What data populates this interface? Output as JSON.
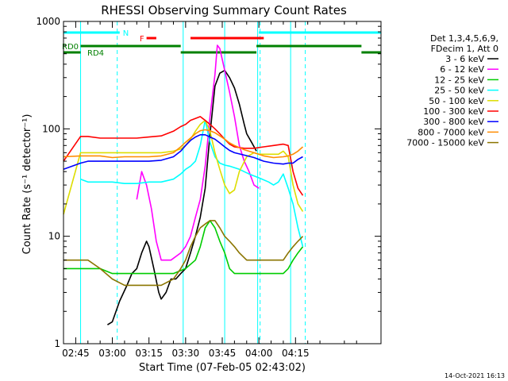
{
  "chart_data": {
    "type": "line",
    "title": "RHESSI Observing Summary Count Rates",
    "xlabel": "Start Time (07-Feb-05 02:43:02)",
    "ylabel": "Count Rate (s⁻¹ detector⁻¹)",
    "y_scale": "log",
    "ylim": [
      1,
      1000
    ],
    "y_ticks": [
      {
        "value": 1,
        "label": "1"
      },
      {
        "value": 10,
        "label": "10"
      },
      {
        "value": 100,
        "label": "100"
      },
      {
        "value": 1000,
        "label": "1000"
      }
    ],
    "xlim_minutes": [
      -20,
      110
    ],
    "x_ticks": [
      {
        "value": -15,
        "label": "02:45"
      },
      {
        "value": 0,
        "label": "03:00"
      },
      {
        "value": 15,
        "label": "03:15"
      },
      {
        "value": 30,
        "label": "03:30"
      },
      {
        "value": 45,
        "label": "03:45"
      },
      {
        "value": 60,
        "label": "04:00"
      },
      {
        "value": 75,
        "label": "04:15"
      }
    ],
    "x_reference": "03:00",
    "timestamp": "14-Oct-2021 16:13",
    "legend_header": [
      "Det 1,3,4,5,6,9,",
      "FDecim 1, Att 0"
    ],
    "legend_position": "right",
    "series": [
      {
        "name": "3 - 6 keV",
        "color": "#000000",
        "points": [
          [
            -2,
            1.5
          ],
          [
            0,
            1.6
          ],
          [
            3,
            2.5
          ],
          [
            6,
            3.5
          ],
          [
            8,
            4.5
          ],
          [
            10,
            5
          ],
          [
            12,
            7
          ],
          [
            14,
            9
          ],
          [
            15,
            8
          ],
          [
            17,
            5
          ],
          [
            19,
            3
          ],
          [
            20,
            2.6
          ],
          [
            22,
            3
          ],
          [
            24,
            4
          ],
          [
            26,
            4
          ],
          [
            28,
            4.5
          ],
          [
            30,
            5
          ],
          [
            32,
            7
          ],
          [
            34,
            10
          ],
          [
            36,
            15
          ],
          [
            38,
            28
          ],
          [
            40,
            90
          ],
          [
            42,
            250
          ],
          [
            44,
            330
          ],
          [
            46,
            350
          ],
          [
            48,
            300
          ],
          [
            50,
            240
          ],
          [
            52,
            170
          ],
          [
            54,
            110
          ],
          [
            55,
            90
          ],
          [
            57,
            75
          ],
          [
            59,
            62
          ]
        ]
      },
      {
        "name": "6 - 12 keV",
        "color": "#ff00ff",
        "points": [
          [
            10,
            22
          ],
          [
            12,
            40
          ],
          [
            14,
            30
          ],
          [
            16,
            18
          ],
          [
            18,
            9
          ],
          [
            20,
            6
          ],
          [
            24,
            6
          ],
          [
            28,
            7
          ],
          [
            30,
            8
          ],
          [
            32,
            10
          ],
          [
            34,
            15
          ],
          [
            36,
            22
          ],
          [
            38,
            45
          ],
          [
            40,
            130
          ],
          [
            42,
            320
          ],
          [
            43,
            600
          ],
          [
            44,
            560
          ],
          [
            46,
            350
          ],
          [
            48,
            220
          ],
          [
            50,
            130
          ],
          [
            52,
            70
          ],
          [
            54,
            50
          ],
          [
            56,
            40
          ],
          [
            58,
            30
          ],
          [
            60,
            28
          ]
        ]
      },
      {
        "name": "12 - 25 keV",
        "color": "#00cc00",
        "points": [
          [
            -20,
            5
          ],
          [
            -13,
            5
          ],
          [
            -10,
            5
          ],
          [
            -5,
            5
          ],
          [
            0,
            4.5
          ],
          [
            5,
            4.5
          ],
          [
            10,
            4.5
          ],
          [
            15,
            4.5
          ],
          [
            20,
            4.5
          ],
          [
            25,
            4.5
          ],
          [
            30,
            5
          ],
          [
            34,
            6
          ],
          [
            36,
            8
          ],
          [
            38,
            12
          ],
          [
            40,
            14
          ],
          [
            42,
            12
          ],
          [
            44,
            9
          ],
          [
            46,
            7
          ],
          [
            48,
            5
          ],
          [
            50,
            4.5
          ],
          [
            55,
            4.5
          ],
          [
            60,
            4.5
          ],
          [
            65,
            4.5
          ],
          [
            70,
            4.5
          ],
          [
            72,
            5
          ],
          [
            74,
            6
          ],
          [
            76,
            7
          ],
          [
            78,
            8
          ]
        ]
      },
      {
        "name": "25 - 50 keV",
        "color": "#00ffff",
        "points": [
          [
            -13,
            34
          ],
          [
            -10,
            32
          ],
          [
            -5,
            32
          ],
          [
            0,
            32
          ],
          [
            5,
            31
          ],
          [
            10,
            31
          ],
          [
            15,
            32
          ],
          [
            20,
            32
          ],
          [
            25,
            34
          ],
          [
            28,
            38
          ],
          [
            30,
            42
          ],
          [
            32,
            45
          ],
          [
            34,
            50
          ],
          [
            36,
            70
          ],
          [
            38,
            120
          ],
          [
            40,
            75
          ],
          [
            42,
            55
          ],
          [
            44,
            48
          ],
          [
            46,
            46
          ],
          [
            48,
            45
          ],
          [
            52,
            42
          ],
          [
            56,
            38
          ],
          [
            60,
            35
          ],
          [
            64,
            32
          ],
          [
            66,
            30
          ],
          [
            68,
            32
          ],
          [
            70,
            38
          ],
          [
            72,
            28
          ],
          [
            74,
            20
          ],
          [
            76,
            12
          ],
          [
            78,
            8
          ]
        ]
      },
      {
        "name": "50 - 100 keV",
        "color": "#dddd00",
        "points": [
          [
            -20,
            16
          ],
          [
            -13,
            60
          ],
          [
            -10,
            60
          ],
          [
            -5,
            60
          ],
          [
            0,
            60
          ],
          [
            5,
            60
          ],
          [
            10,
            60
          ],
          [
            15,
            60
          ],
          [
            20,
            60
          ],
          [
            25,
            62
          ],
          [
            28,
            65
          ],
          [
            30,
            70
          ],
          [
            32,
            80
          ],
          [
            34,
            95
          ],
          [
            36,
            110
          ],
          [
            38,
            120
          ],
          [
            40,
            95
          ],
          [
            42,
            60
          ],
          [
            44,
            42
          ],
          [
            46,
            30
          ],
          [
            48,
            25
          ],
          [
            50,
            27
          ],
          [
            52,
            40
          ],
          [
            55,
            55
          ],
          [
            58,
            60
          ],
          [
            60,
            58
          ],
          [
            64,
            58
          ],
          [
            68,
            58
          ],
          [
            70,
            62
          ],
          [
            72,
            55
          ],
          [
            74,
            30
          ],
          [
            76,
            20
          ],
          [
            78,
            17
          ]
        ]
      },
      {
        "name": "100 - 300 keV",
        "color": "#ff0000",
        "points": [
          [
            -20,
            50
          ],
          [
            -13,
            85
          ],
          [
            -10,
            85
          ],
          [
            -5,
            82
          ],
          [
            0,
            82
          ],
          [
            5,
            82
          ],
          [
            10,
            82
          ],
          [
            15,
            84
          ],
          [
            20,
            86
          ],
          [
            25,
            95
          ],
          [
            28,
            105
          ],
          [
            30,
            110
          ],
          [
            32,
            120
          ],
          [
            34,
            125
          ],
          [
            36,
            130
          ],
          [
            38,
            120
          ],
          [
            40,
            110
          ],
          [
            42,
            100
          ],
          [
            44,
            90
          ],
          [
            46,
            80
          ],
          [
            48,
            72
          ],
          [
            50,
            68
          ],
          [
            54,
            66
          ],
          [
            58,
            66
          ],
          [
            62,
            68
          ],
          [
            66,
            70
          ],
          [
            70,
            72
          ],
          [
            72,
            70
          ],
          [
            74,
            40
          ],
          [
            76,
            28
          ],
          [
            78,
            24
          ]
        ]
      },
      {
        "name": "300 - 800 keV",
        "color": "#0000ff",
        "points": [
          [
            -20,
            42
          ],
          [
            -13,
            48
          ],
          [
            -10,
            50
          ],
          [
            -5,
            50
          ],
          [
            0,
            50
          ],
          [
            5,
            50
          ],
          [
            10,
            50
          ],
          [
            15,
            50
          ],
          [
            20,
            51
          ],
          [
            25,
            55
          ],
          [
            28,
            62
          ],
          [
            30,
            70
          ],
          [
            32,
            78
          ],
          [
            34,
            84
          ],
          [
            36,
            88
          ],
          [
            38,
            88
          ],
          [
            40,
            84
          ],
          [
            42,
            80
          ],
          [
            44,
            74
          ],
          [
            46,
            68
          ],
          [
            48,
            63
          ],
          [
            50,
            60
          ],
          [
            54,
            57
          ],
          [
            58,
            54
          ],
          [
            62,
            50
          ],
          [
            66,
            48
          ],
          [
            70,
            47
          ],
          [
            72,
            48
          ],
          [
            74,
            48
          ],
          [
            76,
            52
          ],
          [
            78,
            55
          ]
        ]
      },
      {
        "name": "800 - 7000 keV",
        "color": "#ff8c00",
        "points": [
          [
            -20,
            55
          ],
          [
            -13,
            56
          ],
          [
            -10,
            56
          ],
          [
            -5,
            56
          ],
          [
            0,
            54
          ],
          [
            5,
            55
          ],
          [
            10,
            55
          ],
          [
            15,
            55
          ],
          [
            20,
            56
          ],
          [
            25,
            60
          ],
          [
            28,
            68
          ],
          [
            30,
            75
          ],
          [
            32,
            82
          ],
          [
            34,
            90
          ],
          [
            36,
            96
          ],
          [
            38,
            98
          ],
          [
            40,
            96
          ],
          [
            42,
            92
          ],
          [
            44,
            86
          ],
          [
            46,
            80
          ],
          [
            48,
            74
          ],
          [
            50,
            70
          ],
          [
            54,
            64
          ],
          [
            58,
            60
          ],
          [
            62,
            56
          ],
          [
            66,
            54
          ],
          [
            70,
            55
          ],
          [
            72,
            56
          ],
          [
            74,
            58
          ],
          [
            76,
            62
          ],
          [
            78,
            68
          ]
        ]
      },
      {
        "name": "7000 - 15000 keV",
        "color": "#8b7500",
        "points": [
          [
            -20,
            6
          ],
          [
            -13,
            6
          ],
          [
            -10,
            6
          ],
          [
            -5,
            5
          ],
          [
            0,
            4
          ],
          [
            5,
            3.5
          ],
          [
            10,
            3.5
          ],
          [
            15,
            3.5
          ],
          [
            20,
            3.5
          ],
          [
            25,
            4
          ],
          [
            28,
            5
          ],
          [
            30,
            6
          ],
          [
            32,
            8
          ],
          [
            34,
            10
          ],
          [
            36,
            12
          ],
          [
            38,
            13
          ],
          [
            40,
            14
          ],
          [
            42,
            14
          ],
          [
            44,
            12
          ],
          [
            46,
            10
          ],
          [
            48,
            9
          ],
          [
            50,
            8
          ],
          [
            52,
            7
          ],
          [
            55,
            6
          ],
          [
            58,
            6
          ],
          [
            62,
            6
          ],
          [
            66,
            6
          ],
          [
            70,
            6
          ],
          [
            72,
            7
          ],
          [
            74,
            8
          ],
          [
            76,
            9
          ],
          [
            78,
            10
          ]
        ]
      }
    ],
    "state_bars": [
      {
        "label": "N",
        "color": "#00ffff",
        "level": 1,
        "segments": [
          [
            -20,
            3
          ],
          [
            60,
            110
          ]
        ]
      },
      {
        "label": "F",
        "color": "#ff0000",
        "level": 2,
        "segments": [
          [
            14,
            18
          ],
          [
            32,
            62
          ]
        ]
      },
      {
        "label": "RD0",
        "color": "#008000",
        "level": 3,
        "segments": [
          [
            -13,
            28
          ],
          [
            59,
            102
          ]
        ]
      },
      {
        "label": "RD4",
        "color": "#008000",
        "level": 4,
        "segments": [
          [
            -20,
            -13
          ],
          [
            28,
            59
          ],
          [
            102,
            110
          ]
        ]
      }
    ],
    "vertical_markers": [
      {
        "style": "dashed",
        "color": "#00ffff",
        "x": 2
      },
      {
        "style": "dashed",
        "color": "#00ffff",
        "x": 60.5
      },
      {
        "style": "dashed",
        "color": "#00ffff",
        "x": 79
      },
      {
        "style": "solid",
        "color": "#00ffff",
        "x": -13
      },
      {
        "style": "solid",
        "color": "#00ffff",
        "x": 29
      },
      {
        "style": "solid",
        "color": "#00ffff",
        "x": 46
      },
      {
        "style": "solid",
        "color": "#00ffff",
        "x": 59.5
      },
      {
        "style": "solid",
        "color": "#00ffff",
        "x": 73
      }
    ]
  }
}
